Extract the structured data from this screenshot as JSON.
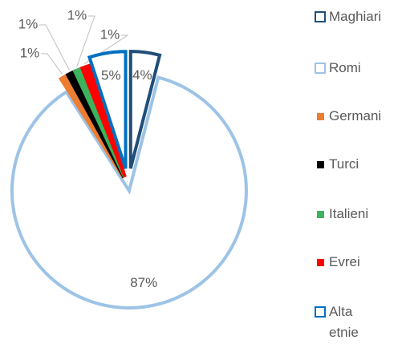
{
  "chart_data": {
    "type": "pie",
    "categories": [
      "Maghiari",
      "Romi",
      "Germani",
      "Turci",
      "Italieni",
      "Evrei",
      "Alta etnie"
    ],
    "values": [
      4,
      87,
      1,
      1,
      1,
      1,
      5
    ],
    "value_labels": [
      "4%",
      "87%",
      "1%",
      "1%",
      "1%",
      "1%",
      "5%"
    ],
    "colors": [
      "#1f4e79",
      "#9dc3e6",
      "#ed7d31",
      "#000000",
      "#3cb35c",
      "#ff0000",
      "#0070c0"
    ],
    "legend": "right"
  }
}
